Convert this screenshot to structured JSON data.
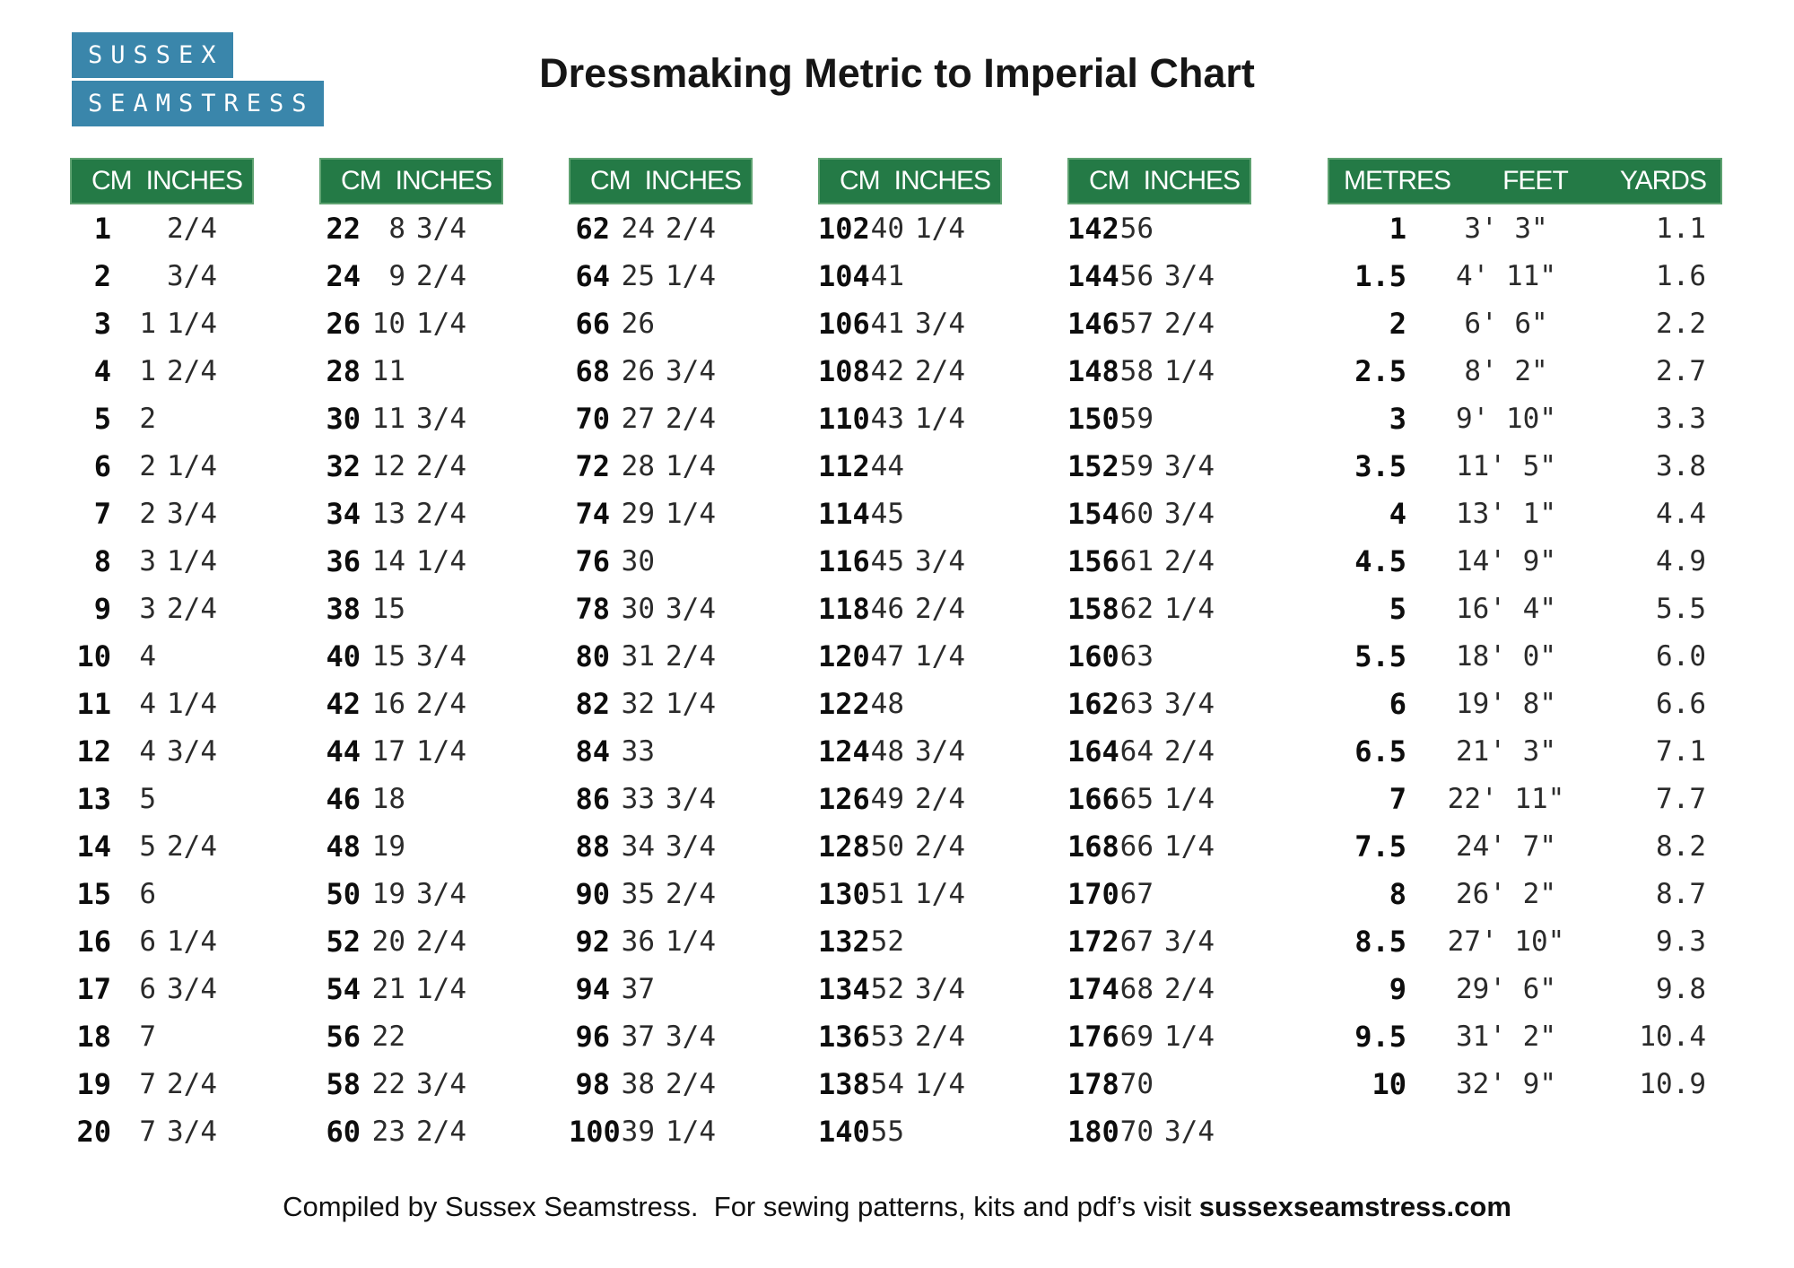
{
  "title": "Dressmaking Metric to Imperial Chart",
  "logo": {
    "line1": "SUSSEX",
    "line2": "SEAMSTRESS"
  },
  "colors": {
    "header_green": "#247a46",
    "logo_blue": "#3a86ab",
    "text": "#2b2b2b"
  },
  "chart_data": [
    {
      "type": "table",
      "title": "cm-to-inches-1-20",
      "columns": [
        "CM",
        "INCHES"
      ],
      "rows": [
        [
          "1",
          "",
          "2/4"
        ],
        [
          "2",
          "",
          "3/4"
        ],
        [
          "3",
          "1",
          "1/4"
        ],
        [
          "4",
          "1",
          "2/4"
        ],
        [
          "5",
          "2",
          ""
        ],
        [
          "6",
          "2",
          "1/4"
        ],
        [
          "7",
          "2",
          "3/4"
        ],
        [
          "8",
          "3",
          "1/4"
        ],
        [
          "9",
          "3",
          "2/4"
        ],
        [
          "10",
          "4",
          ""
        ],
        [
          "11",
          "4",
          "1/4"
        ],
        [
          "12",
          "4",
          "3/4"
        ],
        [
          "13",
          "5",
          ""
        ],
        [
          "14",
          "5",
          "2/4"
        ],
        [
          "15",
          "6",
          ""
        ],
        [
          "16",
          "6",
          "1/4"
        ],
        [
          "17",
          "6",
          "3/4"
        ],
        [
          "18",
          "7",
          ""
        ],
        [
          "19",
          "7",
          "2/4"
        ],
        [
          "20",
          "7",
          "3/4"
        ]
      ]
    },
    {
      "type": "table",
      "title": "cm-to-inches-22-60",
      "columns": [
        "CM",
        "INCHES"
      ],
      "rows": [
        [
          "22",
          "8",
          "3/4"
        ],
        [
          "24",
          "9",
          "2/4"
        ],
        [
          "26",
          "10",
          "1/4"
        ],
        [
          "28",
          "11",
          ""
        ],
        [
          "30",
          "11",
          "3/4"
        ],
        [
          "32",
          "12",
          "2/4"
        ],
        [
          "34",
          "13",
          "2/4"
        ],
        [
          "36",
          "14",
          "1/4"
        ],
        [
          "38",
          "15",
          ""
        ],
        [
          "40",
          "15",
          "3/4"
        ],
        [
          "42",
          "16",
          "2/4"
        ],
        [
          "44",
          "17",
          "1/4"
        ],
        [
          "46",
          "18",
          ""
        ],
        [
          "48",
          "19",
          ""
        ],
        [
          "50",
          "19",
          "3/4"
        ],
        [
          "52",
          "20",
          "2/4"
        ],
        [
          "54",
          "21",
          "1/4"
        ],
        [
          "56",
          "22",
          ""
        ],
        [
          "58",
          "22",
          "3/4"
        ],
        [
          "60",
          "23",
          "2/4"
        ]
      ]
    },
    {
      "type": "table",
      "title": "cm-to-inches-62-100",
      "columns": [
        "CM",
        "INCHES"
      ],
      "rows": [
        [
          "62",
          "24",
          "2/4"
        ],
        [
          "64",
          "25",
          "1/4"
        ],
        [
          "66",
          "26",
          ""
        ],
        [
          "68",
          "26",
          "3/4"
        ],
        [
          "70",
          "27",
          "2/4"
        ],
        [
          "72",
          "28",
          "1/4"
        ],
        [
          "74",
          "29",
          "1/4"
        ],
        [
          "76",
          "30",
          ""
        ],
        [
          "78",
          "30",
          "3/4"
        ],
        [
          "80",
          "31",
          "2/4"
        ],
        [
          "82",
          "32",
          "1/4"
        ],
        [
          "84",
          "33",
          ""
        ],
        [
          "86",
          "33",
          "3/4"
        ],
        [
          "88",
          "34",
          "3/4"
        ],
        [
          "90",
          "35",
          "2/4"
        ],
        [
          "92",
          "36",
          "1/4"
        ],
        [
          "94",
          "37",
          ""
        ],
        [
          "96",
          "37",
          "3/4"
        ],
        [
          "98",
          "38",
          "2/4"
        ],
        [
          "100",
          "39",
          "1/4"
        ]
      ]
    },
    {
      "type": "table",
      "title": "cm-to-inches-102-140",
      "columns": [
        "CM",
        "INCHES"
      ],
      "rows": [
        [
          "102",
          "40",
          "1/4"
        ],
        [
          "104",
          "41",
          ""
        ],
        [
          "106",
          "41",
          "3/4"
        ],
        [
          "108",
          "42",
          "2/4"
        ],
        [
          "110",
          "43",
          "1/4"
        ],
        [
          "112",
          "44",
          ""
        ],
        [
          "114",
          "45",
          ""
        ],
        [
          "116",
          "45",
          "3/4"
        ],
        [
          "118",
          "46",
          "2/4"
        ],
        [
          "120",
          "47",
          "1/4"
        ],
        [
          "122",
          "48",
          ""
        ],
        [
          "124",
          "48",
          "3/4"
        ],
        [
          "126",
          "49",
          "2/4"
        ],
        [
          "128",
          "50",
          "2/4"
        ],
        [
          "130",
          "51",
          "1/4"
        ],
        [
          "132",
          "52",
          ""
        ],
        [
          "134",
          "52",
          "3/4"
        ],
        [
          "136",
          "53",
          "2/4"
        ],
        [
          "138",
          "54",
          "1/4"
        ],
        [
          "140",
          "55",
          ""
        ]
      ]
    },
    {
      "type": "table",
      "title": "cm-to-inches-142-180",
      "columns": [
        "CM",
        "INCHES"
      ],
      "rows": [
        [
          "142",
          "56",
          ""
        ],
        [
          "144",
          "56",
          "3/4"
        ],
        [
          "146",
          "57",
          "2/4"
        ],
        [
          "148",
          "58",
          "1/4"
        ],
        [
          "150",
          "59",
          ""
        ],
        [
          "152",
          "59",
          "3/4"
        ],
        [
          "154",
          "60",
          "3/4"
        ],
        [
          "156",
          "61",
          "2/4"
        ],
        [
          "158",
          "62",
          "1/4"
        ],
        [
          "160",
          "63",
          ""
        ],
        [
          "162",
          "63",
          "3/4"
        ],
        [
          "164",
          "64",
          "2/4"
        ],
        [
          "166",
          "65",
          "1/4"
        ],
        [
          "168",
          "66",
          "1/4"
        ],
        [
          "170",
          "67",
          ""
        ],
        [
          "172",
          "67",
          "3/4"
        ],
        [
          "174",
          "68",
          "2/4"
        ],
        [
          "176",
          "69",
          "1/4"
        ],
        [
          "178",
          "70",
          ""
        ],
        [
          "180",
          "70",
          "3/4"
        ]
      ]
    },
    {
      "type": "table",
      "title": "metres-feet-yards",
      "columns": [
        "METRES",
        "FEET",
        "YARDS"
      ],
      "rows": [
        [
          "1",
          "3' 3\"",
          "1.1"
        ],
        [
          "1.5",
          "4' 11\"",
          "1.6"
        ],
        [
          "2",
          "6' 6\"",
          "2.2"
        ],
        [
          "2.5",
          "8' 2\"",
          "2.7"
        ],
        [
          "3",
          "9' 10\"",
          "3.3"
        ],
        [
          "3.5",
          "11' 5\"",
          "3.8"
        ],
        [
          "4",
          "13' 1\"",
          "4.4"
        ],
        [
          "4.5",
          "14' 9\"",
          "4.9"
        ],
        [
          "5",
          "16' 4\"",
          "5.5"
        ],
        [
          "5.5",
          "18' 0\"",
          "6.0"
        ],
        [
          "6",
          "19' 8\"",
          "6.6"
        ],
        [
          "6.5",
          "21' 3\"",
          "7.1"
        ],
        [
          "7",
          "22' 11\"",
          "7.7"
        ],
        [
          "7.5",
          "24' 7\"",
          "8.2"
        ],
        [
          "8",
          "26' 2\"",
          "8.7"
        ],
        [
          "8.5",
          "27' 10\"",
          "9.3"
        ],
        [
          "9",
          "29' 6\"",
          "9.8"
        ],
        [
          "9.5",
          "31' 2\"",
          "10.4"
        ],
        [
          "10",
          "32' 9\"",
          "10.9"
        ]
      ]
    }
  ],
  "footer": {
    "text": "Compiled by Sussex Seamstress.  For sewing patterns, kits and pdf’s visit ",
    "link": "sussexseamstress.com"
  }
}
